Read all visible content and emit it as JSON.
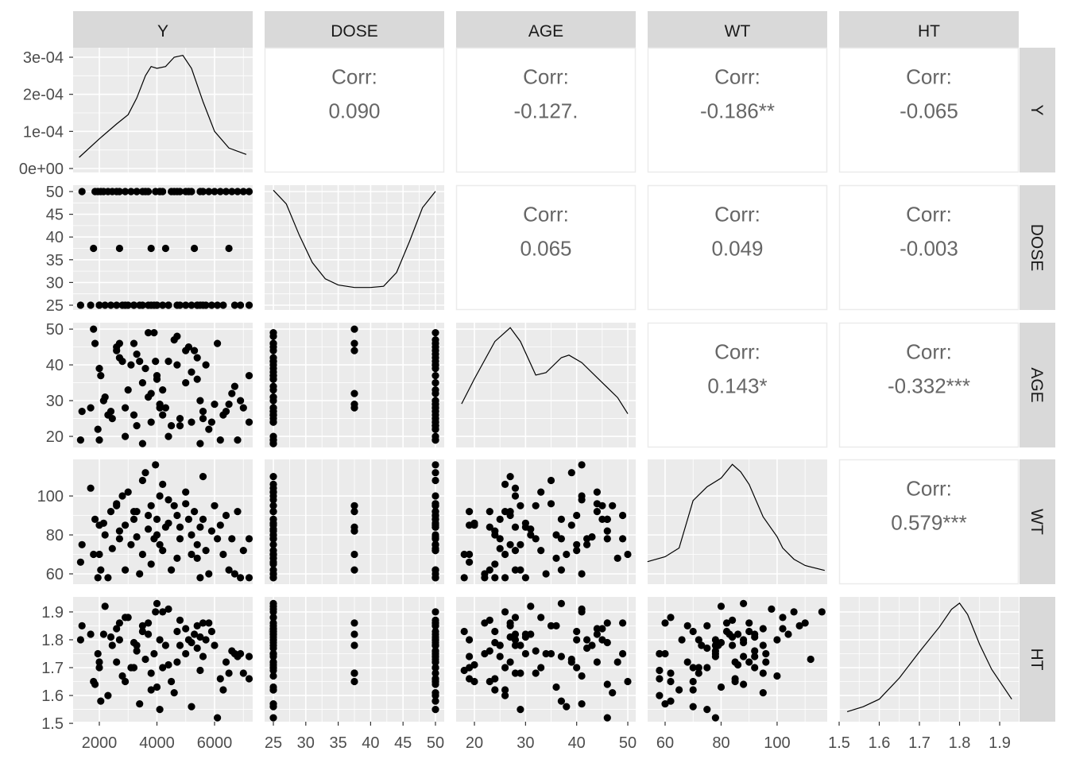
{
  "chart_data": {
    "type": "scatter",
    "title": "",
    "plot_type": "pairs matrix",
    "variables": [
      "Y",
      "DOSE",
      "AGE",
      "WT",
      "HT"
    ],
    "colors": {
      "panel": "#EBEBEB",
      "grid": "#FFFFFF",
      "strip": "#D9D9D9",
      "points": "#000000",
      "corr_text": "#666666"
    },
    "axes": {
      "Y": {
        "xlim": [
          1090,
          7324
        ],
        "xticks": [
          2000,
          4000,
          6000
        ],
        "xtick_labels": [
          "2000",
          "4000",
          "6000"
        ],
        "minor": [
          1000,
          3000,
          5000,
          7000
        ]
      },
      "DOSE": {
        "xlim": [
          23.65,
          51.35
        ],
        "ylim": [
          23.95,
          51.4
        ],
        "xticks": [
          25,
          30,
          35,
          40,
          45,
          50
        ],
        "xtick_labels": [
          "25",
          "30",
          "35",
          "40",
          "45",
          "50"
        ],
        "minor": [
          27.5,
          32.5,
          37.5,
          42.5,
          47.5
        ]
      },
      "AGE": {
        "xlim": [
          16.42,
          51.55
        ],
        "ylim": [
          16.9,
          51.8
        ],
        "xticks": [
          20,
          30,
          40,
          50
        ],
        "xtick_labels": [
          "20",
          "30",
          "40",
          "50"
        ],
        "minor": [
          25,
          35,
          45
        ]
      },
      "WT": {
        "xlim": [
          53.76,
          117.9
        ],
        "ylim": [
          54.7,
          118.8
        ],
        "xticks": [
          60,
          80,
          100
        ],
        "xtick_labels": [
          "60",
          "80",
          "100"
        ],
        "minor": [
          70,
          90,
          110
        ]
      },
      "HT": {
        "xlim": [
          1.5,
          1.9475
        ],
        "ylim": [
          1.506,
          1.954
        ],
        "xticks": [
          1.5,
          1.6,
          1.7,
          1.8,
          1.9
        ],
        "xtick_labels": [
          "1.5",
          "1.6",
          "1.7",
          "1.8",
          "1.9"
        ],
        "minor": [
          1.55,
          1.65,
          1.75,
          1.85
        ]
      }
    },
    "density_y_axis": {
      "ylim": [
        -1.07e-05,
        0.0003257
      ],
      "ticks": [
        0,
        0.0001,
        0.0002,
        0.0003
      ],
      "tick_labels": [
        "0e+00",
        "1e-04",
        "2e-04",
        "3e-04"
      ]
    },
    "densities": {
      "Y": [
        [
          1300,
          3e-05
        ],
        [
          2000,
          8e-05
        ],
        [
          2600,
          0.00012
        ],
        [
          3000,
          0.000145
        ],
        [
          3300,
          0.00019
        ],
        [
          3600,
          0.00025
        ],
        [
          3800,
          0.000275
        ],
        [
          4000,
          0.00027
        ],
        [
          4300,
          0.000275
        ],
        [
          4600,
          0.0003
        ],
        [
          4900,
          0.000305
        ],
        [
          5200,
          0.00027
        ],
        [
          5600,
          0.00018
        ],
        [
          6000,
          0.0001
        ],
        [
          6500,
          5.5e-05
        ],
        [
          7100,
          3.8e-05
        ]
      ],
      "DOSE_relative": [
        [
          25,
          0.96
        ],
        [
          27,
          0.85
        ],
        [
          29,
          0.6
        ],
        [
          31,
          0.38
        ],
        [
          33,
          0.25
        ],
        [
          35,
          0.2
        ],
        [
          37.5,
          0.18
        ],
        [
          40,
          0.18
        ],
        [
          42,
          0.19
        ],
        [
          44,
          0.3
        ],
        [
          46,
          0.55
        ],
        [
          48,
          0.82
        ],
        [
          50,
          0.95
        ]
      ],
      "AGE_relative": [
        [
          17.5,
          0.35
        ],
        [
          20,
          0.55
        ],
        [
          24,
          0.85
        ],
        [
          27,
          0.96
        ],
        [
          29,
          0.85
        ],
        [
          32,
          0.58
        ],
        [
          34,
          0.6
        ],
        [
          37,
          0.72
        ],
        [
          38.5,
          0.74
        ],
        [
          41,
          0.68
        ],
        [
          45,
          0.52
        ],
        [
          48,
          0.4
        ],
        [
          50,
          0.27
        ]
      ],
      "WT_relative": [
        [
          53.7,
          0.18
        ],
        [
          60,
          0.22
        ],
        [
          65,
          0.29
        ],
        [
          70,
          0.67
        ],
        [
          75,
          0.78
        ],
        [
          80,
          0.85
        ],
        [
          84,
          0.96
        ],
        [
          87,
          0.9
        ],
        [
          90,
          0.8
        ],
        [
          95,
          0.54
        ],
        [
          100,
          0.38
        ],
        [
          102,
          0.29
        ],
        [
          106,
          0.2
        ],
        [
          110,
          0.15
        ],
        [
          117,
          0.11
        ]
      ],
      "HT_relative": [
        [
          1.52,
          0.08
        ],
        [
          1.56,
          0.12
        ],
        [
          1.6,
          0.18
        ],
        [
          1.65,
          0.35
        ],
        [
          1.7,
          0.56
        ],
        [
          1.75,
          0.76
        ],
        [
          1.78,
          0.9
        ],
        [
          1.8,
          0.95
        ],
        [
          1.82,
          0.86
        ],
        [
          1.85,
          0.62
        ],
        [
          1.88,
          0.42
        ],
        [
          1.93,
          0.18
        ]
      ]
    },
    "correlations": [
      {
        "row": "Y",
        "col": "DOSE",
        "label": "Corr:",
        "value": "0.090"
      },
      {
        "row": "Y",
        "col": "AGE",
        "label": "Corr:",
        "value": "-0.127."
      },
      {
        "row": "Y",
        "col": "WT",
        "label": "Corr:",
        "value": "-0.186**"
      },
      {
        "row": "Y",
        "col": "HT",
        "label": "Corr:",
        "value": "-0.065"
      },
      {
        "row": "DOSE",
        "col": "AGE",
        "label": "Corr:",
        "value": "0.065"
      },
      {
        "row": "DOSE",
        "col": "WT",
        "label": "Corr:",
        "value": "0.049"
      },
      {
        "row": "DOSE",
        "col": "HT",
        "label": "Corr:",
        "value": "-0.003"
      },
      {
        "row": "AGE",
        "col": "WT",
        "label": "Corr:",
        "value": "0.143*"
      },
      {
        "row": "AGE",
        "col": "HT",
        "label": "Corr:",
        "value": "-0.332***"
      },
      {
        "row": "WT",
        "col": "HT",
        "label": "Corr:",
        "value": "0.579***"
      }
    ],
    "subjects_columns": [
      "Y",
      "DOSE",
      "AGE",
      "WT",
      "HT"
    ],
    "subjects": [
      [
        1350,
        25,
        19,
        66,
        1.8
      ],
      [
        1400,
        50,
        27,
        75,
        1.85
      ],
      [
        1700,
        25,
        28,
        104,
        1.82
      ],
      [
        1800,
        37.5,
        50,
        70,
        1.65
      ],
      [
        1850,
        50,
        46,
        88,
        1.64
      ],
      [
        2000,
        25,
        39,
        85,
        1.72
      ],
      [
        2050,
        50,
        37,
        62,
        1.58
      ],
      [
        2000,
        25,
        19,
        70,
        1.7
      ],
      [
        1950,
        50,
        22,
        58,
        1.75
      ],
      [
        2200,
        25,
        31,
        80,
        1.92
      ],
      [
        2150,
        50,
        30,
        86,
        1.82
      ],
      [
        2400,
        25,
        27,
        92,
        1.81
      ],
      [
        2450,
        50,
        25,
        73,
        1.78
      ],
      [
        2600,
        25,
        45,
        95,
        1.84
      ],
      [
        2700,
        37.5,
        46,
        82,
        1.86
      ],
      [
        2700,
        50,
        42,
        78,
        1.8
      ],
      [
        2800,
        25,
        41,
        100,
        1.67
      ],
      [
        2900,
        50,
        20,
        85,
        1.65
      ],
      [
        2900,
        25,
        28,
        62,
        1.88
      ],
      [
        3100,
        50,
        40,
        75,
        1.7
      ],
      [
        3200,
        25,
        46,
        88,
        1.79
      ],
      [
        3300,
        50,
        23,
        92,
        1.76
      ],
      [
        3400,
        25,
        41,
        60,
        1.57
      ],
      [
        3300,
        50,
        43,
        79,
        1.78
      ],
      [
        3500,
        25,
        18,
        70,
        1.83
      ],
      [
        3600,
        50,
        39,
        112,
        1.73
      ],
      [
        3700,
        25,
        31,
        83,
        1.82
      ],
      [
        3800,
        37.5,
        32,
        95,
        1.68
      ],
      [
        3700,
        50,
        49,
        90,
        1.86
      ],
      [
        3900,
        25,
        49,
        78,
        1.75
      ],
      [
        3950,
        50,
        41,
        116,
        1.9
      ],
      [
        4000,
        25,
        37,
        88,
        1.93
      ],
      [
        4100,
        50,
        28,
        100,
        1.8
      ],
      [
        4000,
        25,
        36,
        80,
        1.63
      ],
      [
        4200,
        50,
        33,
        72,
        1.7
      ],
      [
        4300,
        37.5,
        28,
        84,
        1.78
      ],
      [
        4400,
        25,
        41,
        98,
        1.91
      ],
      [
        4500,
        50,
        23,
        62,
        1.65
      ],
      [
        4400,
        25,
        20,
        86,
        1.71
      ],
      [
        4600,
        50,
        47,
        95,
        1.61
      ],
      [
        4700,
        25,
        48,
        68,
        1.72
      ],
      [
        4700,
        50,
        40,
        90,
        1.83
      ],
      [
        4800,
        25,
        25,
        78,
        1.78
      ],
      [
        5000,
        50,
        35,
        96,
        1.75
      ],
      [
        5000,
        25,
        44,
        102,
        1.84
      ],
      [
        5100,
        50,
        45,
        88,
        1.8
      ],
      [
        5200,
        25,
        38,
        70,
        1.56
      ],
      [
        5300,
        37.5,
        44,
        92,
        1.82
      ],
      [
        5200,
        50,
        24,
        80,
        1.79
      ],
      [
        5400,
        25,
        42,
        75,
        1.77
      ],
      [
        5500,
        50,
        30,
        84,
        1.81
      ],
      [
        5400,
        25,
        36,
        68,
        1.85
      ],
      [
        5600,
        50,
        25,
        88,
        1.74
      ],
      [
        5700,
        25,
        40,
        72,
        1.8
      ],
      [
        5800,
        50,
        22,
        60,
        1.86
      ],
      [
        5900,
        25,
        24,
        82,
        1.83
      ],
      [
        6000,
        50,
        29,
        95,
        1.78
      ],
      [
        6100,
        25,
        46,
        78,
        1.52
      ],
      [
        6200,
        50,
        19,
        85,
        1.66
      ],
      [
        6300,
        25,
        26,
        70,
        1.62
      ],
      [
        6400,
        50,
        27,
        90,
        1.72
      ],
      [
        5500,
        25,
        18,
        58,
        1.69
      ],
      [
        6600,
        50,
        32,
        78,
        1.76
      ],
      [
        6700,
        25,
        34,
        60,
        1.75
      ],
      [
        6800,
        50,
        19,
        92,
        1.74
      ],
      [
        6500,
        37.5,
        29,
        62,
        1.68
      ],
      [
        6900,
        25,
        30,
        58,
        1.75
      ],
      [
        7000,
        50,
        28,
        72,
        1.68
      ],
      [
        7200,
        25,
        37,
        78,
        1.74
      ],
      [
        7200,
        50,
        24,
        58,
        1.66
      ],
      [
        3000,
        25,
        33,
        102,
        1.88
      ],
      [
        3500,
        50,
        35,
        108,
        1.85
      ],
      [
        4200,
        25,
        26,
        106,
        1.9
      ],
      [
        4800,
        50,
        23,
        84,
        1.87
      ],
      [
        3200,
        25,
        26,
        92,
        1.7
      ],
      [
        2600,
        50,
        44,
        96,
        1.72
      ],
      [
        5600,
        25,
        27,
        110,
        1.86
      ],
      [
        4100,
        50,
        29,
        75,
        1.55
      ],
      [
        3800,
        25,
        24,
        65,
        1.62
      ],
      [
        2300,
        50,
        26,
        58,
        1.6
      ]
    ]
  }
}
